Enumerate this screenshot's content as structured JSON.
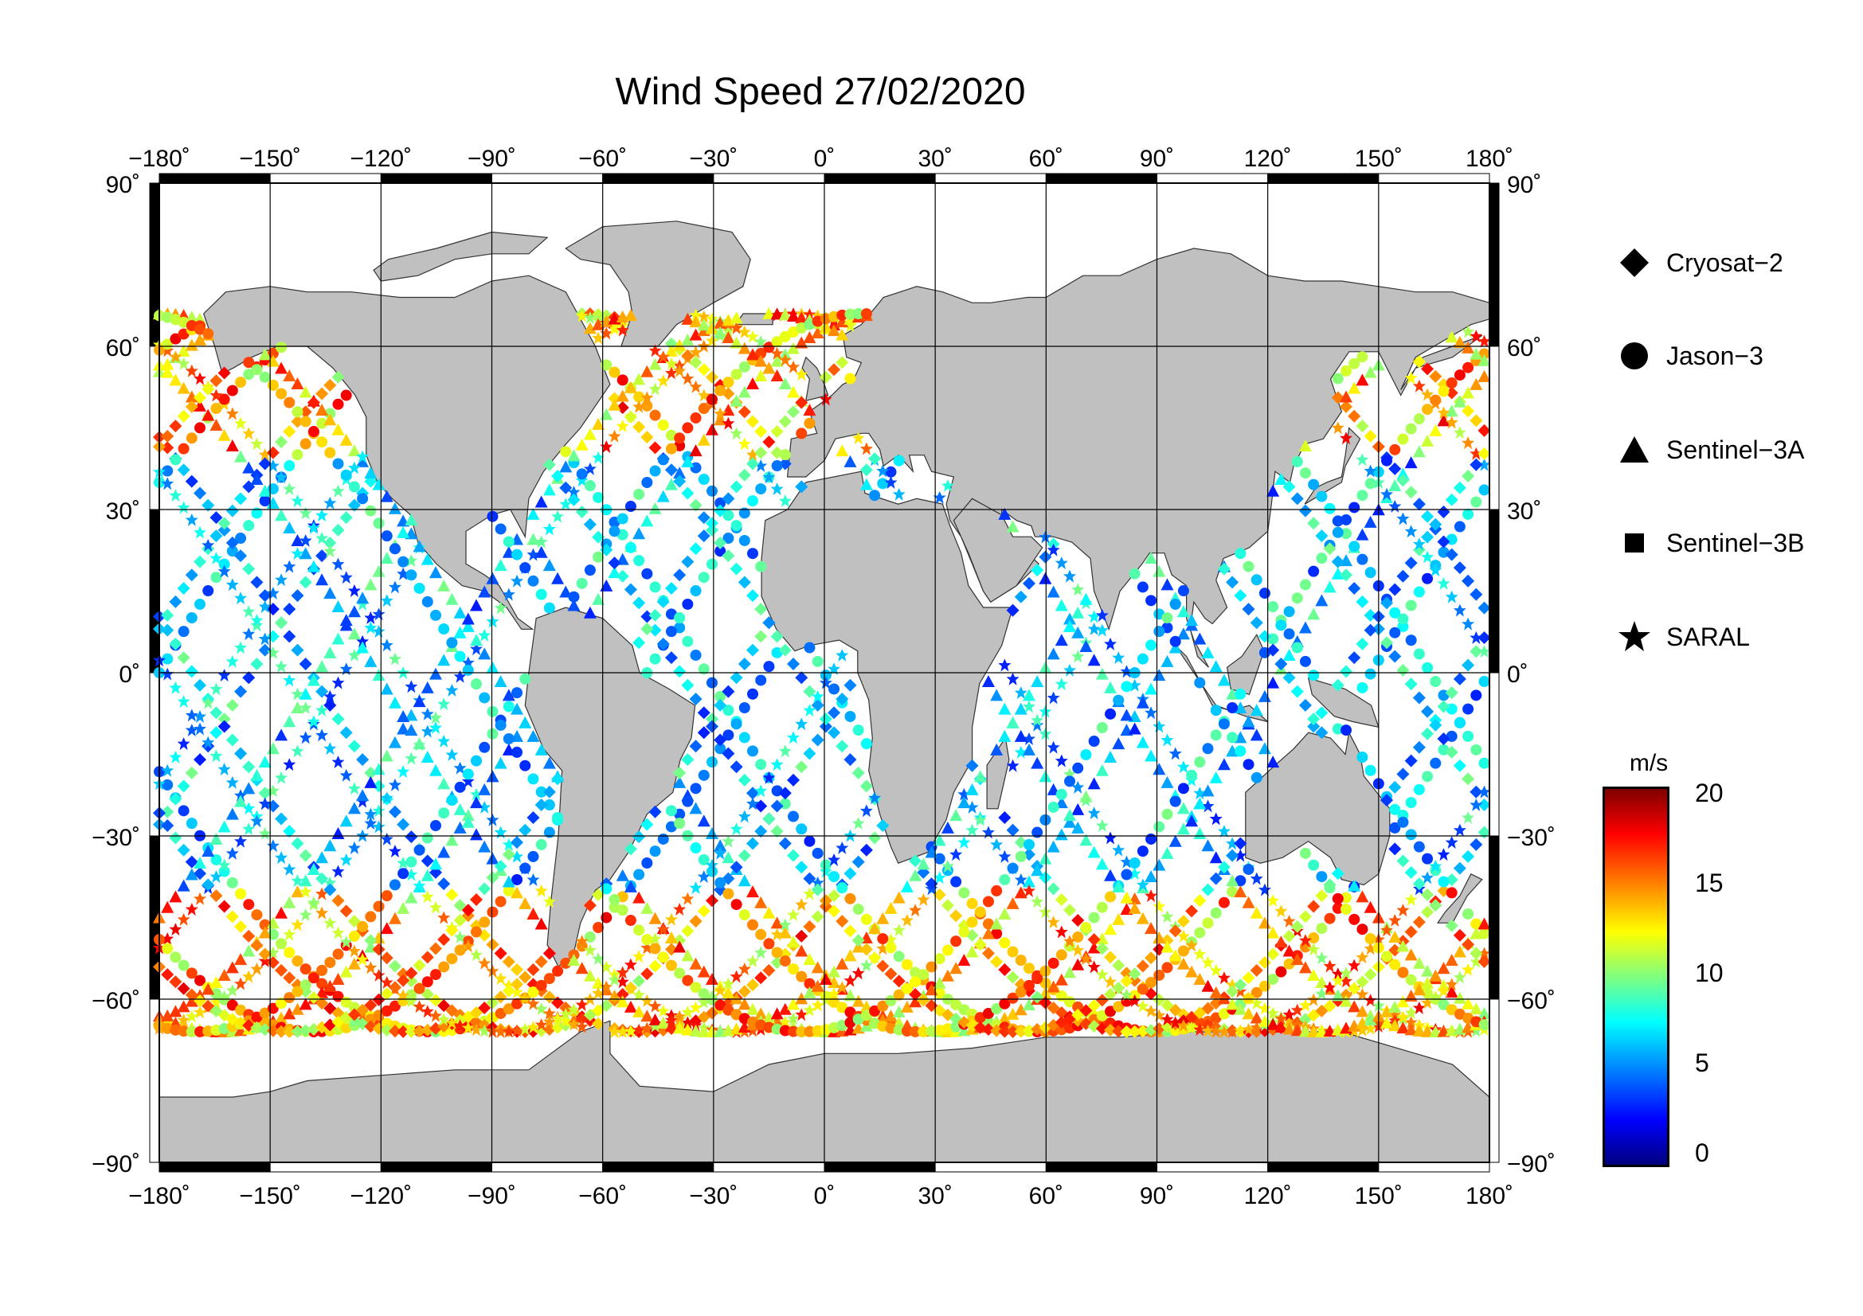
{
  "title": "Wind Speed 27/02/2020",
  "map": {
    "projection": "equirectangular",
    "lon_range": [
      -180,
      180
    ],
    "lat_range": [
      -90,
      90
    ],
    "land_color": "#c0c0c0",
    "ocean_color": "#ffffff",
    "graticule": true,
    "lon_ticks": [
      "−180˚",
      "−150˚",
      "−120˚",
      "−90˚",
      "−60˚",
      "−30˚",
      "0˚",
      "30˚",
      "60˚",
      "90˚",
      "120˚",
      "150˚",
      "180˚"
    ],
    "lat_ticks_left": [
      "90˚",
      "60˚",
      "30˚",
      "0˚",
      "−30˚",
      "−60˚",
      "−90˚"
    ],
    "lat_ticks_right": [
      "90˚",
      "60˚",
      "30˚",
      "0˚",
      "−30˚",
      "−60˚",
      "−90˚"
    ]
  },
  "legend": {
    "items": [
      {
        "label": "Cryosat−2",
        "symbol": "diamond"
      },
      {
        "label": "Jason−3",
        "symbol": "circle"
      },
      {
        "label": "Sentinel−3A",
        "symbol": "triangle"
      },
      {
        "label": "Sentinel−3B",
        "symbol": "square"
      },
      {
        "label": "SARAL",
        "symbol": "star"
      }
    ]
  },
  "colorbar": {
    "title": "m/s",
    "range": [
      0,
      20
    ],
    "ticks": [
      "20",
      "15",
      "10",
      "5",
      "0"
    ],
    "colormap": "jet"
  }
}
